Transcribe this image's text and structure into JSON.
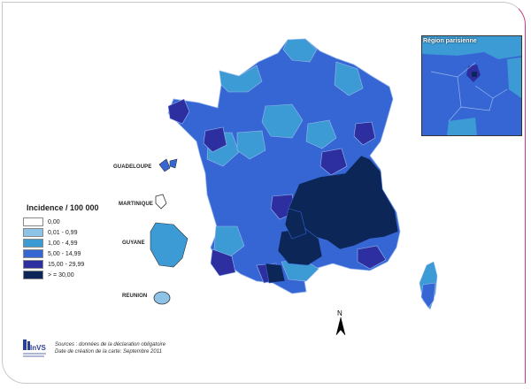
{
  "legend": {
    "title": "Incidence / 100 000",
    "classes": [
      {
        "label": "0,00",
        "color": "#ffffff"
      },
      {
        "label": "0,01 - 0,99",
        "color": "#8ec3e8"
      },
      {
        "label": "1,00 - 4,99",
        "color": "#3c9bd5"
      },
      {
        "label": "5,00 - 14,99",
        "color": "#3566d4"
      },
      {
        "label": "15,00 - 29,99",
        "color": "#2d2fa0"
      },
      {
        "label": "> = 30,00",
        "color": "#0c2658"
      }
    ]
  },
  "overseas": {
    "guadeloupe": "GUADELOUPE",
    "martinique": "MARTINIQUE",
    "guyane": "GUYANE",
    "reunion": "REUNION"
  },
  "inset": {
    "title": "Région parisienne"
  },
  "north_label": "N",
  "sources": {
    "line1": "Sources : données de la déclaration obligatoire",
    "line2": "Date de création de la carte: Septembre 2011"
  },
  "logo": {
    "text": "InVS"
  }
}
